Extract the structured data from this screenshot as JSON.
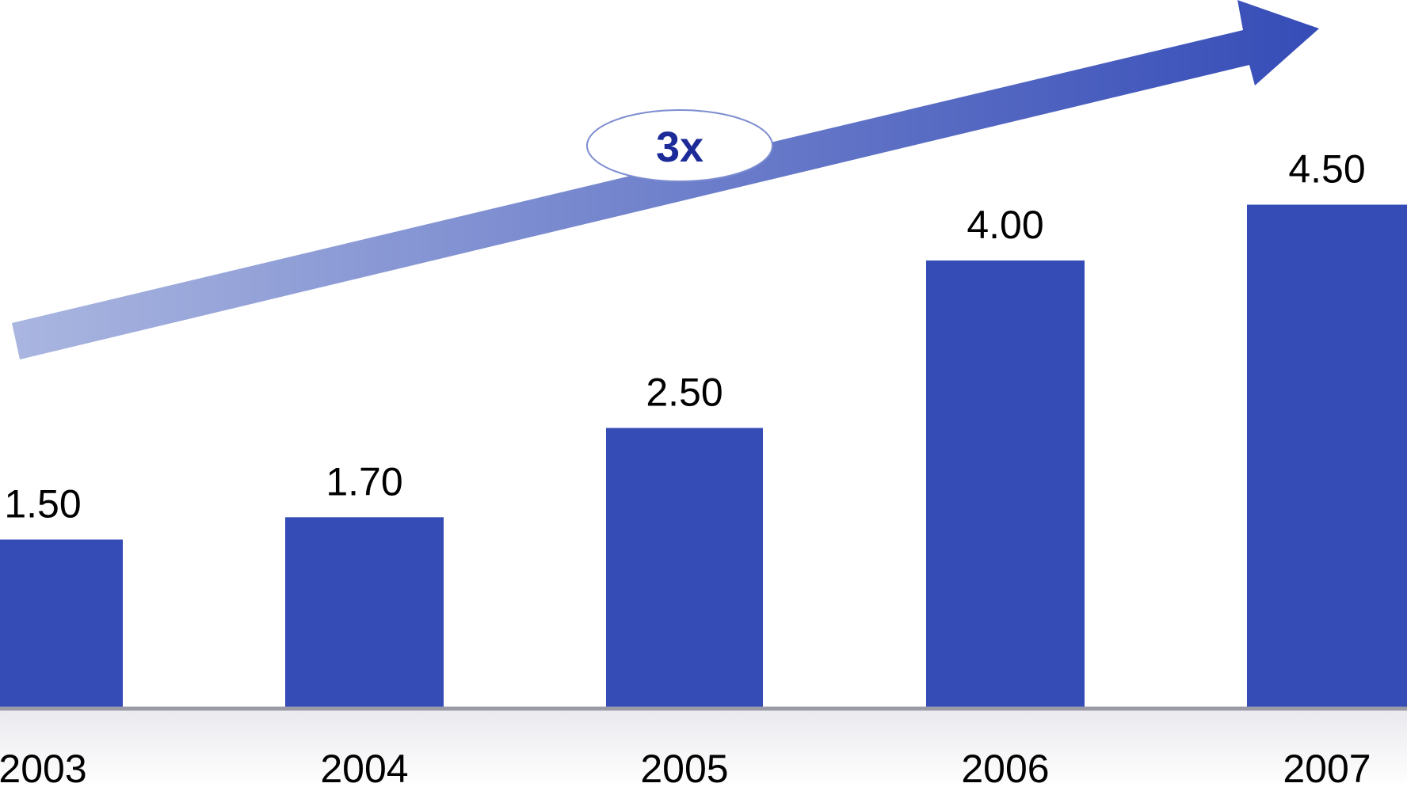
{
  "chart_data": {
    "type": "bar",
    "title": "",
    "xlabel": "",
    "ylabel": "",
    "categories": [
      "2003",
      "2004",
      "2005",
      "2006",
      "2007"
    ],
    "values": [
      1.5,
      1.7,
      2.5,
      4.0,
      4.5
    ],
    "value_labels": [
      "1.50",
      "1.70",
      "2.50",
      "4.00",
      "4.50"
    ],
    "ylim": [
      0,
      6.3
    ],
    "grid": false,
    "legend": "none",
    "bar_color": "#354cb7",
    "annotation": {
      "text": "3x",
      "shape": "trend-arrow",
      "arrow_color_start": "#aab6e0",
      "arrow_color_end": "#354cb7",
      "text_color": "#1d2b99"
    }
  }
}
